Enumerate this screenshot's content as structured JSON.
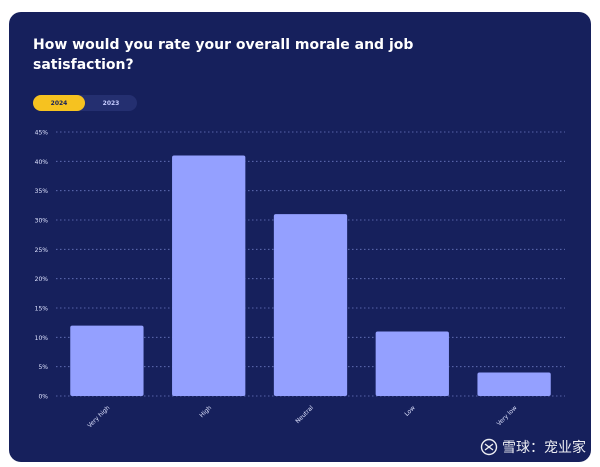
{
  "colors": {
    "background": "#16205c",
    "bar": "#94a0ff",
    "grid": "#6c78c0",
    "text": "#ffffff",
    "tick_text": "#dfe3ff",
    "toggle_active": "#f6c220",
    "toggle_track": "#242f70",
    "toggle_inactive_text": "#c6ccff"
  },
  "toggle": {
    "active": "2024",
    "options": [
      "2024",
      "2023"
    ]
  },
  "watermark": {
    "text": "雪球：宠业家",
    "icon": "snowball-logo-icon"
  },
  "chart_data": {
    "type": "bar",
    "title": "How would you rate your overall morale and job satisfaction?",
    "categories": [
      "Very high",
      "High",
      "Neutral",
      "Low",
      "Very low"
    ],
    "values": [
      12,
      41,
      31,
      11,
      4
    ],
    "ylim": [
      0,
      45
    ],
    "yticks": [
      0,
      5,
      10,
      15,
      20,
      25,
      30,
      35,
      40,
      45
    ],
    "ytick_labels": [
      "0%",
      "5%",
      "10%",
      "15%",
      "20%",
      "25%",
      "30%",
      "35%",
      "40%",
      "45%"
    ],
    "xlabel": "",
    "ylabel": "",
    "grid": true,
    "grid_style": "dotted"
  }
}
